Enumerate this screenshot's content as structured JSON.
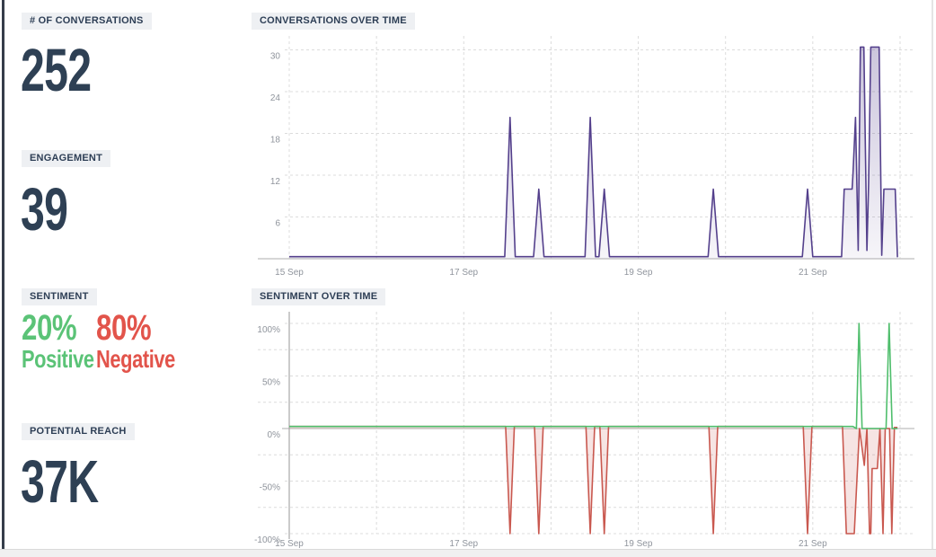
{
  "metrics": {
    "conversations": {
      "label": "# OF CONVERSATIONS",
      "value": "252"
    },
    "engagement": {
      "label": "ENGAGEMENT",
      "value": "39"
    },
    "sentiment": {
      "label": "SENTIMENT",
      "positive_pct": "20%",
      "positive_label": "Positive",
      "negative_pct": "80%",
      "negative_label": "Negative"
    },
    "reach": {
      "label": "POTENTIAL REACH",
      "value": "37K"
    }
  },
  "colors": {
    "metric_text": "#2e4054",
    "chip_bg": "#eef0f3",
    "positive_green": "#5bc377",
    "negative_red": "#e2544b",
    "conversations_line": "#54408c",
    "sentiment_positive_line": "#4fbe6c",
    "sentiment_negative_line": "#c9584f"
  },
  "chart_data": [
    {
      "type": "area",
      "title": "CONVERSATIONS OVER TIME",
      "xlabel": "",
      "ylabel": "",
      "x_unit": "days after 15 Sep",
      "xlim": [
        -0.36,
        7.17
      ],
      "ylim": [
        0,
        32
      ],
      "grid": true,
      "legend": false,
      "x_grid_days": [
        0,
        1,
        2,
        3,
        4,
        5,
        6,
        7
      ],
      "x_ticks": [
        {
          "day": 0,
          "label": "15 Sep"
        },
        {
          "day": 2,
          "label": "17 Sep"
        },
        {
          "day": 4,
          "label": "19 Sep"
        },
        {
          "day": 6,
          "label": "21 Sep"
        }
      ],
      "y_gridlines": [
        6,
        12,
        18,
        24,
        30
      ],
      "y_ticks": [
        {
          "value": 30,
          "label": "30"
        },
        {
          "value": 24,
          "label": "24"
        },
        {
          "value": 18,
          "label": "18"
        },
        {
          "value": 12,
          "label": "12"
        },
        {
          "value": 6,
          "label": "6"
        }
      ],
      "series": [
        {
          "name": "conversations",
          "color": "#54408c",
          "fill": "purple-gradient",
          "points": [
            [
              0,
              0.3
            ],
            [
              2.47,
              0.3
            ],
            [
              2.53,
              20.3
            ],
            [
              2.59,
              0.3
            ],
            [
              2.8,
              0.3
            ],
            [
              2.86,
              10
            ],
            [
              2.92,
              0.3
            ],
            [
              3.39,
              0.3
            ],
            [
              3.45,
              20.3
            ],
            [
              3.51,
              0.3
            ],
            [
              3.55,
              0.3
            ],
            [
              3.61,
              10
            ],
            [
              3.67,
              0.3
            ],
            [
              4.8,
              0.3
            ],
            [
              4.86,
              10
            ],
            [
              4.92,
              0.3
            ],
            [
              5.88,
              0.3
            ],
            [
              5.94,
              10
            ],
            [
              6.0,
              0.3
            ],
            [
              6.33,
              0.3
            ],
            [
              6.36,
              10
            ],
            [
              6.45,
              10
            ],
            [
              6.46,
              12
            ],
            [
              6.49,
              20.3
            ],
            [
              6.52,
              1.2
            ],
            [
              6.545,
              30.4
            ],
            [
              6.585,
              30.4
            ],
            [
              6.62,
              1.2
            ],
            [
              6.64,
              11
            ],
            [
              6.665,
              30.4
            ],
            [
              6.76,
              30.4
            ],
            [
              6.79,
              0.5
            ],
            [
              6.815,
              10
            ],
            [
              6.945,
              10
            ],
            [
              6.97,
              0.2
            ]
          ]
        }
      ]
    },
    {
      "type": "line",
      "title": "SENTIMENT OVER TIME",
      "xlabel": "",
      "ylabel": "",
      "x_unit": "days after 15 Sep",
      "xlim": [
        -0.36,
        7.17
      ],
      "ylim": [
        -100,
        110
      ],
      "grid": true,
      "legend": false,
      "x_grid_days": [
        0,
        1,
        2,
        3,
        4,
        5,
        6,
        7
      ],
      "x_ticks": [
        {
          "day": 0,
          "label": "15 Sep"
        },
        {
          "day": 2,
          "label": "17 Sep"
        },
        {
          "day": 4,
          "label": "19 Sep"
        },
        {
          "day": 6,
          "label": "21 Sep"
        }
      ],
      "y_gridlines": [
        100,
        75,
        50,
        25,
        -25,
        -50,
        -75,
        -100
      ],
      "y_ticks": [
        {
          "value": 100,
          "label": "100%"
        },
        {
          "value": 50,
          "label": "50%"
        },
        {
          "value": 0,
          "label": "0%"
        },
        {
          "value": -50,
          "label": "-50%"
        },
        {
          "value": -100,
          "label": "-100%"
        }
      ],
      "series": [
        {
          "name": "negative",
          "color": "#c9584f",
          "fill": "rgba(201,88,79,0.16)",
          "points": [
            [
              0,
              2
            ],
            [
              2.48,
              2
            ],
            [
              2.53,
              -100
            ],
            [
              2.58,
              2
            ],
            [
              2.81,
              2
            ],
            [
              2.86,
              -100
            ],
            [
              2.91,
              2
            ],
            [
              3.4,
              2
            ],
            [
              3.45,
              -100
            ],
            [
              3.5,
              2
            ],
            [
              3.56,
              2
            ],
            [
              3.61,
              -100
            ],
            [
              3.66,
              2
            ],
            [
              4.81,
              2
            ],
            [
              4.86,
              -100
            ],
            [
              4.91,
              2
            ],
            [
              5.89,
              2
            ],
            [
              5.94,
              -100
            ],
            [
              5.99,
              2
            ],
            [
              6.34,
              2
            ],
            [
              6.385,
              -100
            ],
            [
              6.475,
              -100
            ],
            [
              6.535,
              0
            ],
            [
              6.59,
              -35
            ],
            [
              6.62,
              0
            ],
            [
              6.65,
              -100
            ],
            [
              6.665,
              -100
            ],
            [
              6.68,
              -38
            ],
            [
              6.74,
              -38
            ],
            [
              6.77,
              0
            ],
            [
              6.805,
              -100
            ],
            [
              6.83,
              0
            ],
            [
              6.88,
              0
            ],
            [
              6.905,
              -100
            ],
            [
              6.935,
              1
            ],
            [
              6.97,
              1
            ]
          ]
        },
        {
          "name": "positive",
          "color": "#4fbe6c",
          "fill": null,
          "points": [
            [
              0,
              2
            ],
            [
              6.46,
              2
            ],
            [
              6.5,
              0
            ],
            [
              6.53,
              100
            ],
            [
              6.565,
              0
            ],
            [
              6.84,
              0
            ],
            [
              6.875,
              100
            ],
            [
              6.91,
              0
            ],
            [
              6.97,
              0
            ]
          ]
        }
      ]
    }
  ]
}
